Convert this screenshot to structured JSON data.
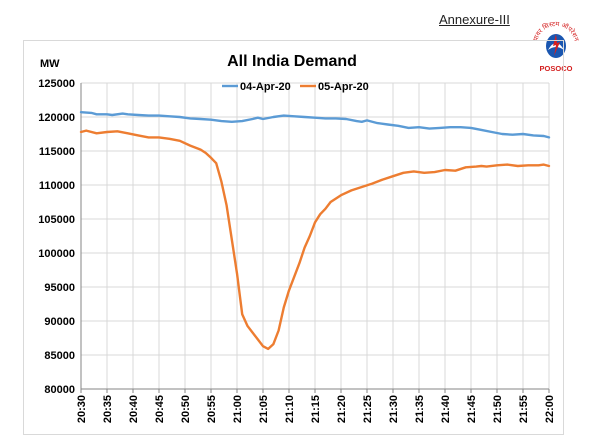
{
  "header": {
    "annexure": "Annexure-III"
  },
  "logo": {
    "arc_text": "पावर सिस्टम ऑपरेशन",
    "name": "POSOCO",
    "color_primary": "#1a56b0",
    "color_accent": "#d42020"
  },
  "chart_data": {
    "type": "line",
    "title": "All India Demand",
    "ylabel": "MW",
    "xlabel": "",
    "ylim": [
      80000,
      125000
    ],
    "yticks": [
      80000,
      85000,
      90000,
      95000,
      100000,
      105000,
      110000,
      115000,
      120000,
      125000
    ],
    "ytick_labels": [
      "80000",
      "85000",
      "90000",
      "95000",
      "100000",
      "105000",
      "110000",
      "115000",
      "120000",
      "125000"
    ],
    "xlim": [
      0,
      90
    ],
    "xticks": [
      0,
      5,
      10,
      15,
      20,
      25,
      30,
      35,
      40,
      45,
      50,
      55,
      60,
      65,
      70,
      75,
      80,
      85,
      90
    ],
    "xtick_labels": [
      "20:30",
      "20:35",
      "20:40",
      "20:45",
      "20:50",
      "20:55",
      "21:00",
      "21:05",
      "21:10",
      "21:15",
      "21:20",
      "21:25",
      "21:30",
      "21:35",
      "21:40",
      "21:45",
      "21:50",
      "21:55",
      "22:00"
    ],
    "grid": true,
    "legend_position": "top-center",
    "series": [
      {
        "name": "04-Apr-20",
        "color": "#5b9bd5",
        "x": [
          0,
          2,
          3,
          5,
          6,
          8,
          9,
          11,
          13,
          15,
          17,
          19,
          21,
          23,
          25,
          27,
          29,
          31,
          33,
          34,
          35,
          37,
          39,
          41,
          43,
          45,
          47,
          49,
          51,
          53,
          54,
          55,
          57,
          59,
          61,
          63,
          65,
          67,
          69,
          71,
          73,
          75,
          77,
          79,
          81,
          83,
          85,
          87,
          89,
          90
        ],
        "y": [
          120700,
          120600,
          120400,
          120400,
          120300,
          120500,
          120400,
          120300,
          120200,
          120200,
          120100,
          120000,
          119800,
          119700,
          119600,
          119400,
          119300,
          119400,
          119700,
          119900,
          119700,
          120000,
          120200,
          120100,
          120000,
          119900,
          119800,
          119800,
          119700,
          119400,
          119300,
          119500,
          119100,
          118900,
          118700,
          118400,
          118500,
          118300,
          118400,
          118500,
          118500,
          118400,
          118100,
          117800,
          117500,
          117400,
          117500,
          117300,
          117200,
          117000
        ]
      },
      {
        "name": "05-Apr-20",
        "color": "#ed7d31",
        "x": [
          0,
          1,
          3,
          5,
          7,
          9,
          11,
          13,
          15,
          17,
          19,
          21,
          23,
          24,
          25,
          26,
          27,
          28,
          29,
          30,
          31,
          32,
          33,
          34,
          35,
          36,
          37,
          38,
          39,
          40,
          41,
          42,
          43,
          44,
          45,
          46,
          47,
          48,
          50,
          52,
          54,
          56,
          58,
          60,
          62,
          64,
          66,
          68,
          70,
          72,
          74,
          76,
          77,
          78,
          80,
          82,
          84,
          86,
          88,
          89,
          90
        ],
        "y": [
          117800,
          118000,
          117600,
          117800,
          117900,
          117600,
          117300,
          117000,
          117000,
          116800,
          116500,
          115800,
          115200,
          114700,
          114000,
          113200,
          110500,
          107000,
          102000,
          97000,
          91000,
          89300,
          88300,
          87300,
          86300,
          85900,
          86600,
          88600,
          92000,
          94500,
          96500,
          98500,
          100800,
          102500,
          104500,
          105700,
          106500,
          107500,
          108500,
          109200,
          109700,
          110200,
          110800,
          111300,
          111800,
          112000,
          111800,
          111900,
          112200,
          112100,
          112600,
          112700,
          112800,
          112700,
          112900,
          113000,
          112800,
          112900,
          112900,
          113000,
          112800
        ]
      }
    ]
  }
}
